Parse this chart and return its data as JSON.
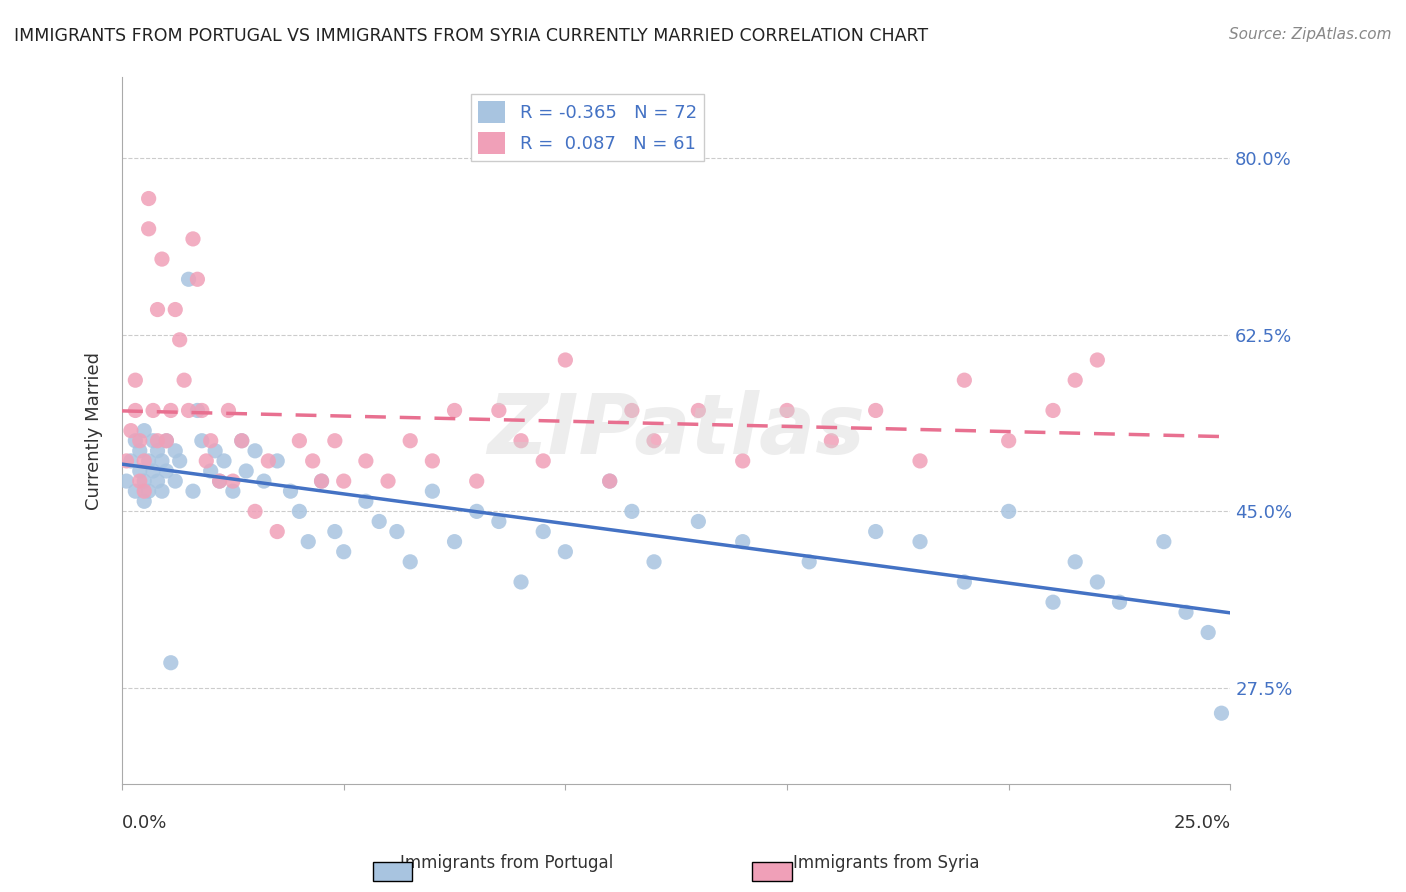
{
  "title": "IMMIGRANTS FROM PORTUGAL VS IMMIGRANTS FROM SYRIA CURRENTLY MARRIED CORRELATION CHART",
  "source": "Source: ZipAtlas.com",
  "ylabel": "Currently Married",
  "ytick_labels": [
    "80.0%",
    "62.5%",
    "45.0%",
    "27.5%"
  ],
  "ytick_values": [
    0.8,
    0.625,
    0.45,
    0.275
  ],
  "xlim": [
    0.0,
    0.25
  ],
  "ylim": [
    0.18,
    0.88
  ],
  "legend_r_portugal": "-0.365",
  "legend_n_portugal": "72",
  "legend_r_syria": "0.087",
  "legend_n_syria": "61",
  "color_portugal": "#a8c4e0",
  "color_syria": "#f0a0b8",
  "color_portugal_line": "#4472c4",
  "color_syria_line": "#e87090",
  "portugal_x": [
    0.001,
    0.002,
    0.003,
    0.003,
    0.004,
    0.004,
    0.005,
    0.005,
    0.005,
    0.006,
    0.006,
    0.007,
    0.007,
    0.008,
    0.008,
    0.009,
    0.009,
    0.01,
    0.01,
    0.011,
    0.012,
    0.012,
    0.013,
    0.015,
    0.016,
    0.017,
    0.018,
    0.02,
    0.021,
    0.022,
    0.023,
    0.025,
    0.027,
    0.028,
    0.03,
    0.032,
    0.035,
    0.038,
    0.04,
    0.042,
    0.045,
    0.048,
    0.05,
    0.055,
    0.058,
    0.062,
    0.065,
    0.07,
    0.075,
    0.08,
    0.085,
    0.09,
    0.095,
    0.1,
    0.11,
    0.115,
    0.12,
    0.13,
    0.14,
    0.155,
    0.17,
    0.18,
    0.19,
    0.2,
    0.21,
    0.215,
    0.22,
    0.225,
    0.235,
    0.24,
    0.245,
    0.248
  ],
  "portugal_y": [
    0.48,
    0.5,
    0.47,
    0.52,
    0.49,
    0.51,
    0.53,
    0.48,
    0.46,
    0.5,
    0.47,
    0.52,
    0.49,
    0.51,
    0.48,
    0.5,
    0.47,
    0.52,
    0.49,
    0.3,
    0.51,
    0.48,
    0.5,
    0.68,
    0.47,
    0.55,
    0.52,
    0.49,
    0.51,
    0.48,
    0.5,
    0.47,
    0.52,
    0.49,
    0.51,
    0.48,
    0.5,
    0.47,
    0.45,
    0.42,
    0.48,
    0.43,
    0.41,
    0.46,
    0.44,
    0.43,
    0.4,
    0.47,
    0.42,
    0.45,
    0.44,
    0.38,
    0.43,
    0.41,
    0.48,
    0.45,
    0.4,
    0.44,
    0.42,
    0.4,
    0.43,
    0.42,
    0.38,
    0.45,
    0.36,
    0.4,
    0.38,
    0.36,
    0.42,
    0.35,
    0.33,
    0.25
  ],
  "syria_x": [
    0.001,
    0.002,
    0.003,
    0.003,
    0.004,
    0.004,
    0.005,
    0.005,
    0.006,
    0.006,
    0.007,
    0.008,
    0.008,
    0.009,
    0.01,
    0.011,
    0.012,
    0.013,
    0.014,
    0.015,
    0.016,
    0.017,
    0.018,
    0.019,
    0.02,
    0.022,
    0.024,
    0.025,
    0.027,
    0.03,
    0.033,
    0.035,
    0.04,
    0.043,
    0.045,
    0.048,
    0.05,
    0.055,
    0.06,
    0.065,
    0.07,
    0.075,
    0.08,
    0.085,
    0.09,
    0.095,
    0.1,
    0.11,
    0.115,
    0.12,
    0.13,
    0.14,
    0.15,
    0.16,
    0.17,
    0.18,
    0.19,
    0.2,
    0.21,
    0.215,
    0.22
  ],
  "syria_y": [
    0.5,
    0.53,
    0.55,
    0.58,
    0.52,
    0.48,
    0.5,
    0.47,
    0.73,
    0.76,
    0.55,
    0.52,
    0.65,
    0.7,
    0.52,
    0.55,
    0.65,
    0.62,
    0.58,
    0.55,
    0.72,
    0.68,
    0.55,
    0.5,
    0.52,
    0.48,
    0.55,
    0.48,
    0.52,
    0.45,
    0.5,
    0.43,
    0.52,
    0.5,
    0.48,
    0.52,
    0.48,
    0.5,
    0.48,
    0.52,
    0.5,
    0.55,
    0.48,
    0.55,
    0.52,
    0.5,
    0.6,
    0.48,
    0.55,
    0.52,
    0.55,
    0.5,
    0.55,
    0.52,
    0.55,
    0.5,
    0.58,
    0.52,
    0.55,
    0.58,
    0.6
  ]
}
